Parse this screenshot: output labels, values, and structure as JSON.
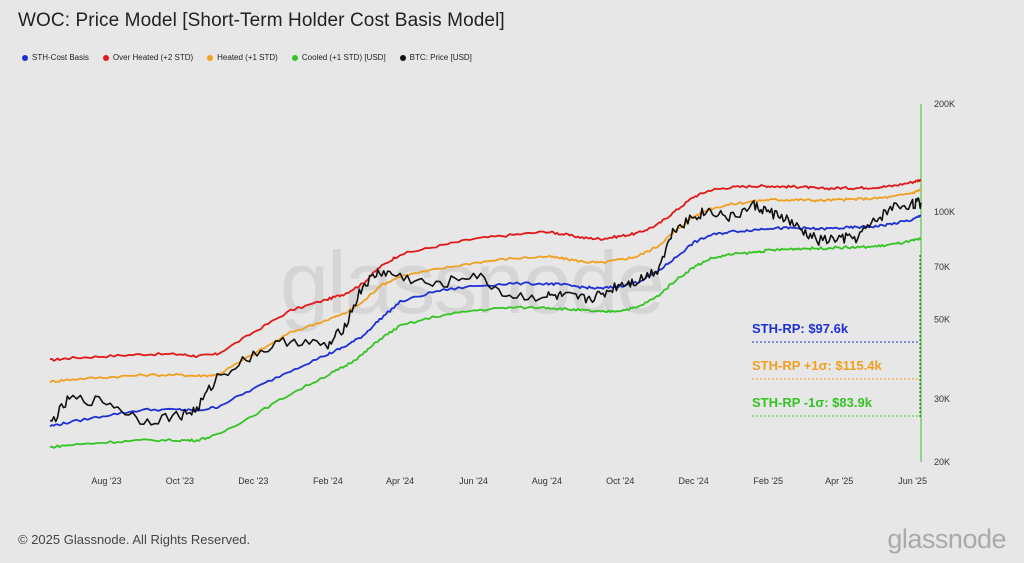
{
  "title": "WOC: Price Model [Short-Term Holder Cost Basis Model]",
  "legend": [
    {
      "label": "STH-Cost Basis",
      "color": "#1f2fd6"
    },
    {
      "label": "Over Heated (+2 STD)",
      "color": "#e01818"
    },
    {
      "label": "Heated (+1 STD)",
      "color": "#f0a020"
    },
    {
      "label": "Cooled (+1 STD) [USD]",
      "color": "#34c424"
    },
    {
      "label": "BTC: Price [USD]",
      "color": "#111111"
    }
  ],
  "watermark": "glassnode",
  "footer": "© 2025 Glassnode. All Rights Reserved.",
  "brand": "glassnode",
  "chart_data": {
    "type": "line",
    "scale": "log",
    "ylim": [
      20000,
      200000
    ],
    "x_ticks": [
      "Aug '23",
      "Oct '23",
      "Dec '23",
      "Feb '24",
      "Apr '24",
      "Jun '24",
      "Aug '24",
      "Oct '24",
      "Dec '24",
      "Feb '25",
      "Apr '25",
      "Jun '25"
    ],
    "y_ticks": [
      {
        "value": 20000,
        "label": "20K"
      },
      {
        "value": 30000,
        "label": "30K"
      },
      {
        "value": 50000,
        "label": "50K"
      },
      {
        "value": 70000,
        "label": "70K"
      },
      {
        "value": 100000,
        "label": "100K"
      },
      {
        "value": 200000,
        "label": "200K"
      }
    ],
    "x": [
      "2023-06-15",
      "2023-07-01",
      "2023-08-01",
      "2023-09-01",
      "2023-10-01",
      "2023-10-15",
      "2023-11-01",
      "2023-12-01",
      "2024-01-01",
      "2024-02-01",
      "2024-02-15",
      "2024-03-01",
      "2024-03-15",
      "2024-04-01",
      "2024-05-01",
      "2024-06-01",
      "2024-07-01",
      "2024-08-01",
      "2024-08-15",
      "2024-09-01",
      "2024-09-15",
      "2024-10-01",
      "2024-10-15",
      "2024-11-01",
      "2024-11-15",
      "2024-12-01",
      "2024-12-15",
      "2025-01-01",
      "2025-01-20",
      "2025-02-01",
      "2025-02-15",
      "2025-03-01",
      "2025-03-15",
      "2025-04-01",
      "2025-04-15",
      "2025-05-01",
      "2025-05-15",
      "2025-06-01",
      "2025-06-08"
    ],
    "series": [
      {
        "name": "Over Heated (+2 STD)",
        "color": "#e01818",
        "values": [
          38500,
          39000,
          39500,
          40000,
          40000,
          39500,
          40000,
          46000,
          53000,
          57000,
          59000,
          63000,
          70000,
          76000,
          80000,
          84000,
          86000,
          88000,
          86500,
          84500,
          84000,
          85500,
          87000,
          92000,
          100000,
          110000,
          115000,
          117000,
          118000,
          118000,
          117500,
          117500,
          116000,
          116500,
          116500,
          117000,
          118000,
          121000,
          123000
        ]
      },
      {
        "name": "Heated (+1 STD)",
        "color": "#f0a020",
        "values": [
          33500,
          34000,
          34500,
          35000,
          35000,
          34800,
          35000,
          40000,
          46000,
          50000,
          52000,
          56000,
          62000,
          66000,
          69000,
          72000,
          74000,
          75000,
          74000,
          72500,
          72000,
          73500,
          75000,
          80000,
          88000,
          97000,
          102000,
          105000,
          107000,
          108000,
          108000,
          108000,
          107500,
          108000,
          108500,
          109000,
          110000,
          113000,
          115400
        ]
      },
      {
        "name": "STH-Cost Basis",
        "color": "#1f2fd6",
        "values": [
          25200,
          25800,
          27000,
          28000,
          28000,
          27800,
          28500,
          32000,
          36000,
          40000,
          42000,
          45000,
          50000,
          56000,
          60000,
          62000,
          63000,
          63000,
          62500,
          61500,
          61000,
          62000,
          63500,
          68000,
          74000,
          82000,
          86000,
          88000,
          89000,
          90000,
          90000,
          90000,
          89500,
          90000,
          90500,
          91000,
          92500,
          95000,
          97600
        ]
      },
      {
        "name": "Cooled (+1 STD) [USD]",
        "color": "#34c424",
        "values": [
          22000,
          22300,
          22700,
          23000,
          23000,
          23000,
          23800,
          27000,
          31000,
          35000,
          37000,
          40000,
          44000,
          48000,
          51000,
          53000,
          54000,
          54000,
          53500,
          53000,
          52500,
          53000,
          54000,
          58000,
          64000,
          70000,
          74000,
          76000,
          77000,
          78000,
          78500,
          79000,
          79000,
          79500,
          79500,
          80000,
          81000,
          83000,
          83900
        ]
      },
      {
        "name": "BTC: Price [USD]",
        "color": "#111111",
        "values": [
          25500,
          30000,
          29500,
          26000,
          27000,
          28000,
          34500,
          40000,
          44000,
          42000,
          48000,
          62000,
          68000,
          66000,
          62000,
          67000,
          58000,
          58000,
          58000,
          57000,
          58500,
          63000,
          64000,
          69000,
          90000,
          97000,
          101000,
          96000,
          104000,
          100000,
          96000,
          88000,
          83000,
          84000,
          84500,
          94000,
          103000,
          105000,
          106000
        ]
      }
    ],
    "annotations": [
      {
        "text": "STH-RP: $97.6k",
        "color": "#1f2fd6"
      },
      {
        "text": "STH-RP +1σ: $115.4k",
        "color": "#f0a020"
      },
      {
        "text": "STH-RP -1σ: $83.9k",
        "color": "#34c424"
      }
    ]
  }
}
